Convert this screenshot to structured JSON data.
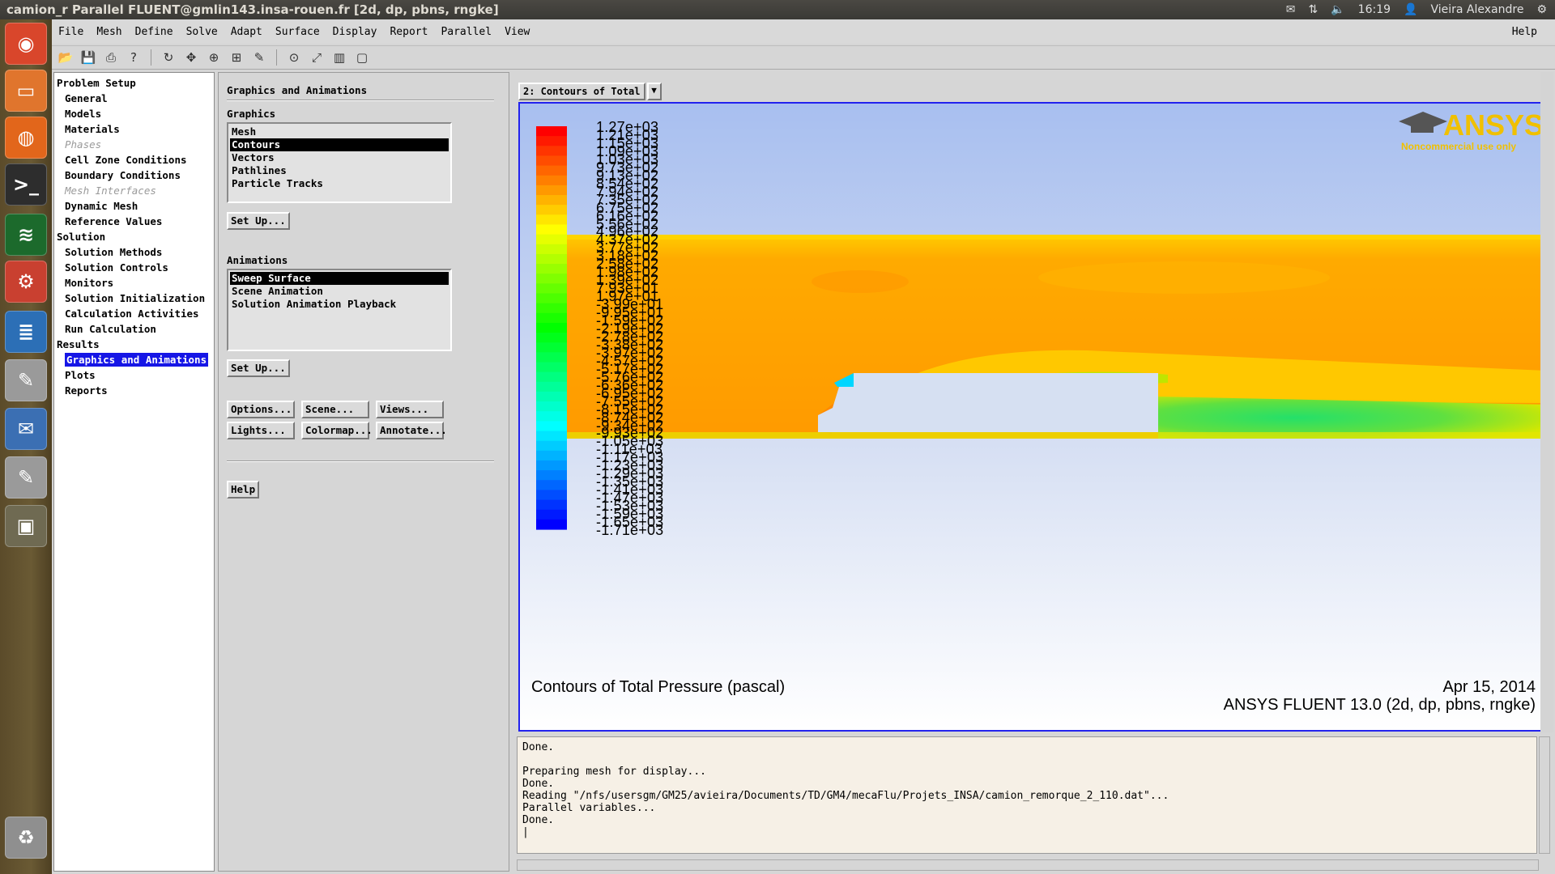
{
  "window": {
    "title": "camion_r Parallel FLUENT@gmlin143.insa-rouen.fr [2d, dp, pbns, rngke]"
  },
  "system": {
    "time": "16:19",
    "user": "Vieira Alexandre",
    "icons": [
      "mail-icon",
      "network-icon",
      "volume-icon",
      "user-icon",
      "settings-gear-icon"
    ]
  },
  "launcher": [
    {
      "name": "ubuntu-dash-icon",
      "glyph": "◉",
      "color": "#d9462b"
    },
    {
      "name": "files-folder-icon",
      "glyph": "▭",
      "color": "#e0752d"
    },
    {
      "name": "firefox-icon",
      "glyph": "◍",
      "color": "#e2661b"
    },
    {
      "name": "terminal-icon",
      "glyph": ">_",
      "color": "#2d2d2d"
    },
    {
      "name": "fluent-app-icon",
      "glyph": "≋",
      "color": "#1c6a2c"
    },
    {
      "name": "system-settings-icon",
      "glyph": "⚙",
      "color": "#c94030"
    },
    {
      "name": "writer-document-icon",
      "glyph": "≣",
      "color": "#2c6fb6"
    },
    {
      "name": "text-editor-icon",
      "glyph": "✎",
      "color": "#9a9a9a"
    },
    {
      "name": "thunderbird-icon",
      "glyph": "✉",
      "color": "#3b6fb3"
    },
    {
      "name": "text-editor-2-icon",
      "glyph": "✎",
      "color": "#9a9a9a"
    },
    {
      "name": "workspace-switcher-icon",
      "glyph": "▣",
      "color": "#6f6a52"
    },
    {
      "name": "trash-icon",
      "glyph": "♻",
      "color": "#8f8f8f"
    }
  ],
  "menu": [
    "File",
    "Mesh",
    "Define",
    "Solve",
    "Adapt",
    "Surface",
    "Display",
    "Report",
    "Parallel",
    "View"
  ],
  "menu_help": "Help",
  "tree": [
    {
      "label": "Problem Setup",
      "level": 0
    },
    {
      "label": "General",
      "level": 1
    },
    {
      "label": "Models",
      "level": 1
    },
    {
      "label": "Materials",
      "level": 1
    },
    {
      "label": "Phases",
      "level": 1,
      "disabled": true
    },
    {
      "label": "Cell Zone Conditions",
      "level": 1
    },
    {
      "label": "Boundary Conditions",
      "level": 1
    },
    {
      "label": "Mesh Interfaces",
      "level": 1,
      "disabled": true
    },
    {
      "label": "Dynamic Mesh",
      "level": 1
    },
    {
      "label": "Reference Values",
      "level": 1
    },
    {
      "label": "Solution",
      "level": 0
    },
    {
      "label": "Solution Methods",
      "level": 1
    },
    {
      "label": "Solution Controls",
      "level": 1
    },
    {
      "label": "Monitors",
      "level": 1
    },
    {
      "label": "Solution Initialization",
      "level": 1
    },
    {
      "label": "Calculation Activities",
      "level": 1
    },
    {
      "label": "Run Calculation",
      "level": 1
    },
    {
      "label": "Results",
      "level": 0
    },
    {
      "label": "Graphics and Animations",
      "level": 1,
      "selected": true
    },
    {
      "label": "Plots",
      "level": 1
    },
    {
      "label": "Reports",
      "level": 1
    }
  ],
  "task": {
    "title": "Graphics and Animations",
    "graphics_label": "Graphics",
    "graphics_items": [
      "Mesh",
      "Contours",
      "Vectors",
      "Pathlines",
      "Particle Tracks"
    ],
    "graphics_selected": "Contours",
    "setup1": "Set Up...",
    "animations_label": "Animations",
    "animation_items": [
      "Sweep Surface",
      "Scene Animation",
      "Solution Animation Playback"
    ],
    "animation_selected": "Sweep Surface",
    "setup2": "Set Up...",
    "buttons_row1": [
      "Options...",
      "Scene...",
      "Views..."
    ],
    "buttons_row2": [
      "Lights...",
      "Colormap...",
      "Annotate..."
    ],
    "help": "Help"
  },
  "graphics_window": {
    "tab": "2: Contours of Total",
    "logo": "ANSYS",
    "logo_sub": "Noncommercial use only",
    "caption": "Contours of Total Pressure (pascal)",
    "date": "Apr 15, 2014",
    "version": "ANSYS FLUENT 13.0 (2d, dp, pbns, rngke)",
    "scale_labels": [
      "1.27e+03",
      "1.21e+03",
      "1.15e+03",
      "1.09e+03",
      "1.03e+03",
      "9.73e+02",
      "9.13e+02",
      "8.54e+02",
      "7.94e+02",
      "7.35e+02",
      "6.75e+02",
      "6.16e+02",
      "5.56e+02",
      "4.96e+02",
      "4.37e+02",
      "3.77e+02",
      "3.18e+02",
      "2.58e+02",
      "1.98e+02",
      "1.39e+02",
      "7.93e+01",
      "1.97e+01",
      "-3.99e+01",
      "-9.95e+01",
      "-1.59e+02",
      "-2.19e+02",
      "-2.78e+02",
      "-3.38e+02",
      "-3.97e+02",
      "-4.57e+02",
      "-5.17e+02",
      "-5.76e+02",
      "-6.36e+02",
      "-6.95e+02",
      "-7.55e+02",
      "-8.15e+02",
      "-8.74e+02",
      "-9.34e+02",
      "-9.93e+02",
      "-1.05e+03",
      "-1.11e+03",
      "-1.17e+03",
      "-1.23e+03",
      "-1.29e+03",
      "-1.35e+03",
      "-1.41e+03",
      "-1.47e+03",
      "-1.53e+03",
      "-1.59e+03",
      "-1.65e+03",
      "-1.71e+03"
    ],
    "scale_colors": [
      "#ff0000",
      "#ff1a00",
      "#ff3500",
      "#ff4d00",
      "#ff6600",
      "#ff7f00",
      "#ff9900",
      "#ffb300",
      "#ffcc00",
      "#ffe600",
      "#ffff00",
      "#e6ff00",
      "#ccff00",
      "#b3ff00",
      "#99ff00",
      "#80ff00",
      "#66ff00",
      "#4dff00",
      "#33ff00",
      "#1aff00",
      "#00ff00",
      "#00ff1a",
      "#00ff33",
      "#00ff4d",
      "#00ff66",
      "#00ff80",
      "#00ff99",
      "#00ffb3",
      "#00ffcc",
      "#00ffe6",
      "#00ffff",
      "#00e6ff",
      "#00ccff",
      "#00b3ff",
      "#0099ff",
      "#0080ff",
      "#0066ff",
      "#004dff",
      "#0033ff",
      "#001aff",
      "#0000ff"
    ]
  },
  "console": [
    "Done.",
    "",
    "Preparing mesh for display...",
    "Done.",
    "Reading \"/nfs/usersgm/GM25/avieira/Documents/TD/GM4/mecaFlu/Projets_INSA/camion_remorque_2_110.dat\"...",
    "Parallel variables...",
    "Done.",
    "|"
  ]
}
